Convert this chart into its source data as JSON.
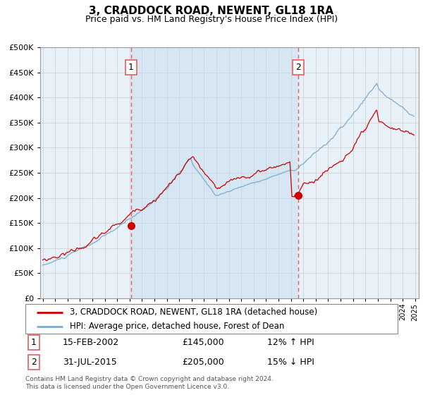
{
  "title": "3, CRADDOCK ROAD, NEWENT, GL18 1RA",
  "subtitle": "Price paid vs. HM Land Registry's House Price Index (HPI)",
  "legend_line1": "3, CRADDOCK ROAD, NEWENT, GL18 1RA (detached house)",
  "legend_line2": "HPI: Average price, detached house, Forest of Dean",
  "marker1_date": "15-FEB-2002",
  "marker1_price": "£145,000",
  "marker1_hpi": "12% ↑ HPI",
  "marker1_year": 2002.12,
  "marker1_value": 145000,
  "marker2_date": "31-JUL-2015",
  "marker2_price": "£205,000",
  "marker2_hpi": "15% ↓ HPI",
  "marker2_year": 2015.58,
  "marker2_value": 205000,
  "red_color": "#cc0000",
  "blue_color": "#7aadcf",
  "blue_fill": "#d0e4f0",
  "bg_color": "#e8f0f8",
  "grid_color": "#cccccc",
  "dashed_color": "#e06060",
  "shade_color": "#c5dded",
  "ylim_max": 500000,
  "footnote": "Contains HM Land Registry data © Crown copyright and database right 2024.\nThis data is licensed under the Open Government Licence v3.0."
}
